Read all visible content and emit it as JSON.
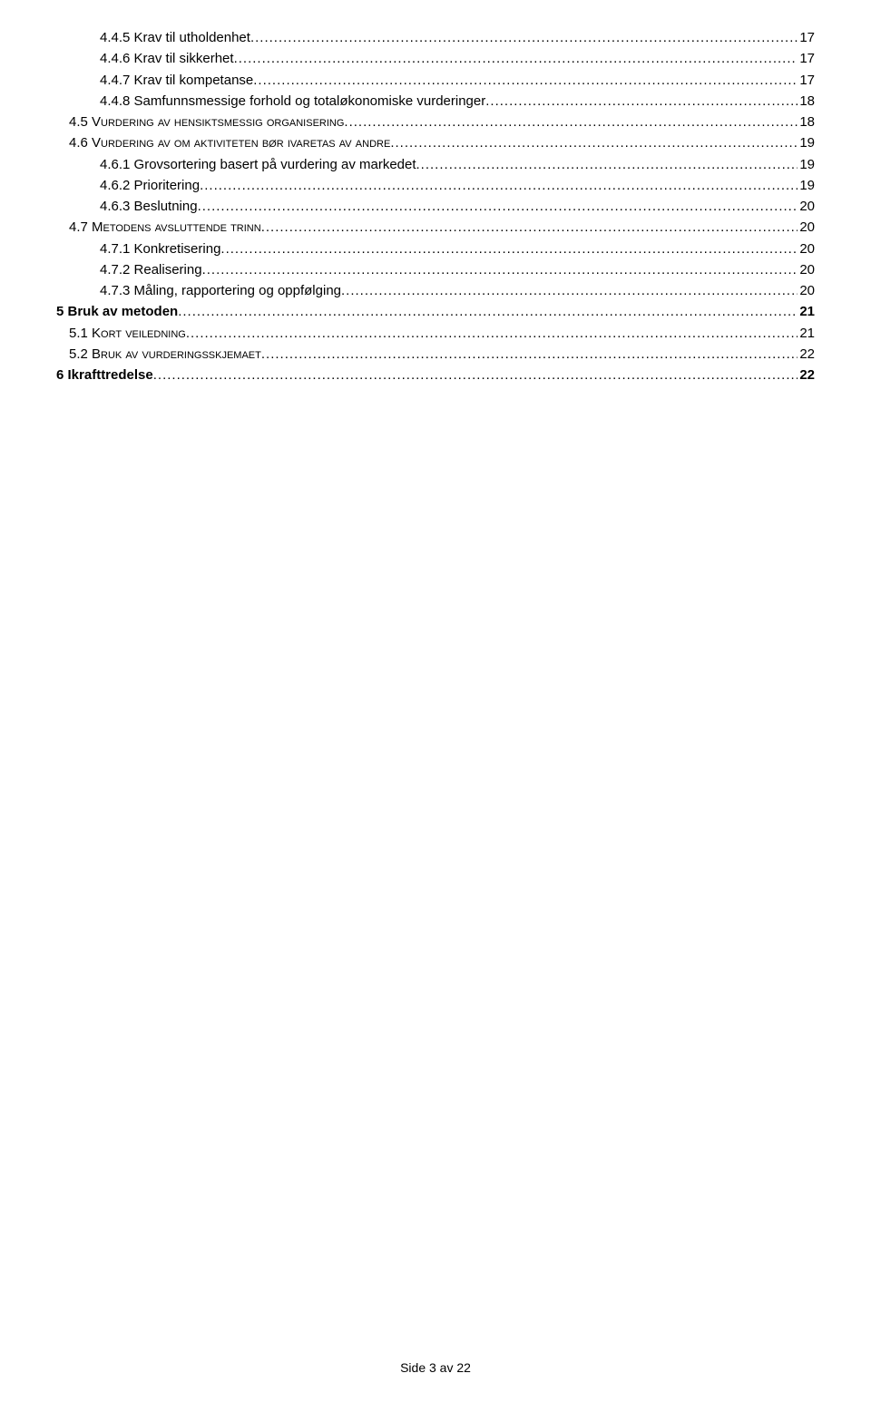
{
  "footer": "Side 3 av 22",
  "leader_char": ".",
  "entries": [
    {
      "label": "4.4.5 Krav til utholdenhet",
      "page": "17",
      "indent": 2,
      "bold": false,
      "smallcaps": false
    },
    {
      "label": "4.4.6 Krav til sikkerhet",
      "page": "17",
      "indent": 2,
      "bold": false,
      "smallcaps": false
    },
    {
      "label": "4.4.7 Krav til kompetanse",
      "page": "17",
      "indent": 2,
      "bold": false,
      "smallcaps": false
    },
    {
      "label": "4.4.8 Samfunnsmessige forhold og totaløkonomiske vurderinger",
      "page": "18",
      "indent": 2,
      "bold": false,
      "smallcaps": false
    },
    {
      "label": "4.5 Vurdering av hensiktsmessig organisering",
      "page": "18",
      "indent": 1,
      "bold": false,
      "smallcaps": true
    },
    {
      "label": "4.6 Vurdering av om aktiviteten bør ivaretas av andre",
      "page": "19",
      "indent": 1,
      "bold": false,
      "smallcaps": true
    },
    {
      "label": "4.6.1 Grovsortering basert på vurdering av markedet",
      "page": "19",
      "indent": 2,
      "bold": false,
      "smallcaps": false
    },
    {
      "label": "4.6.2 Prioritering",
      "page": "19",
      "indent": 2,
      "bold": false,
      "smallcaps": false
    },
    {
      "label": "4.6.3 Beslutning",
      "page": "20",
      "indent": 2,
      "bold": false,
      "smallcaps": false
    },
    {
      "label": "4.7 Metodens avsluttende trinn",
      "page": "20",
      "indent": 1,
      "bold": false,
      "smallcaps": true
    },
    {
      "label": "4.7.1 Konkretisering",
      "page": "20",
      "indent": 2,
      "bold": false,
      "smallcaps": false
    },
    {
      "label": "4.7.2 Realisering",
      "page": "20",
      "indent": 2,
      "bold": false,
      "smallcaps": false
    },
    {
      "label": "4.7.3 Måling, rapportering og oppfølging",
      "page": "20",
      "indent": 2,
      "bold": false,
      "smallcaps": false
    },
    {
      "label": "5 Bruk av metoden",
      "page": "21",
      "indent": 0,
      "bold": true,
      "smallcaps": false
    },
    {
      "label": "5.1 Kort veiledning",
      "page": "21",
      "indent": 1,
      "bold": false,
      "smallcaps": true
    },
    {
      "label": "5.2 Bruk av vurderingsskjemaet",
      "page": "22",
      "indent": 1,
      "bold": false,
      "smallcaps": true
    },
    {
      "label": "6 Ikrafttredelse",
      "page": "22",
      "indent": 0,
      "bold": true,
      "smallcaps": false
    }
  ]
}
